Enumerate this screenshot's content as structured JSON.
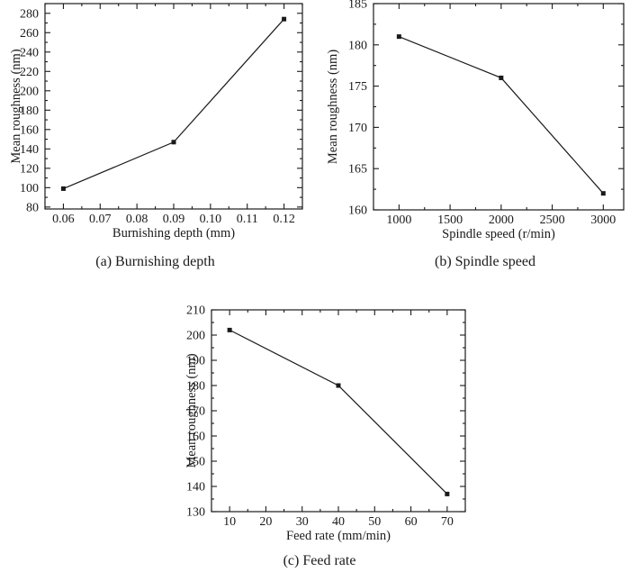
{
  "colors": {
    "ink": "#1a1a1a",
    "background": "#ffffff"
  },
  "chart_data": [
    {
      "id": "a",
      "type": "line",
      "caption": "(a) Burnishing depth",
      "xlabel": "Burnishing depth (mm)",
      "ylabel": "Mean roughness (nm)",
      "x": [
        0.06,
        0.09,
        0.12
      ],
      "y": [
        99,
        147,
        274
      ],
      "xlim": [
        0.055,
        0.125
      ],
      "ylim": [
        78,
        290
      ],
      "xticks": [
        0.06,
        0.07,
        0.08,
        0.09,
        0.1,
        0.11,
        0.12
      ],
      "xtick_labels": [
        "0.06",
        "0.07",
        "0.08",
        "0.09",
        "0.10",
        "0.11",
        "0.12"
      ],
      "yticks": [
        80,
        100,
        120,
        140,
        160,
        180,
        200,
        220,
        240,
        260,
        280
      ],
      "ytick_labels": [
        "80",
        "100",
        "120",
        "140",
        "160",
        "180",
        "200",
        "220",
        "240",
        "260",
        "280"
      ],
      "x_minor_step": 0.005,
      "y_minor_step": 10,
      "marker": "filled-square",
      "line_color": "#1a1a1a",
      "grid": false,
      "legend": "none"
    },
    {
      "id": "b",
      "type": "line",
      "caption": "(b) Spindle speed",
      "xlabel": "Spindle speed (r/min)",
      "ylabel": "Mean roughness (nm)",
      "x": [
        1000,
        2000,
        3000
      ],
      "y": [
        181,
        176,
        162
      ],
      "xlim": [
        750,
        3200
      ],
      "ylim": [
        160,
        185
      ],
      "xticks": [
        1000,
        1500,
        2000,
        2500,
        3000
      ],
      "xtick_labels": [
        "1000",
        "1500",
        "2000",
        "2500",
        "3000"
      ],
      "yticks": [
        160,
        165,
        170,
        175,
        180,
        185
      ],
      "ytick_labels": [
        "160",
        "165",
        "170",
        "175",
        "180",
        "185"
      ],
      "x_minor_step": 250,
      "y_minor_step": 2.5,
      "marker": "filled-square",
      "line_color": "#1a1a1a",
      "grid": false,
      "legend": "none"
    },
    {
      "id": "c",
      "type": "line",
      "caption": "(c) Feed rate",
      "xlabel": "Feed rate (mm/min)",
      "ylabel": "Mean roughness (nm)",
      "x": [
        10,
        40,
        70
      ],
      "y": [
        202,
        180,
        137
      ],
      "xlim": [
        5,
        75
      ],
      "ylim": [
        130,
        210
      ],
      "xticks": [
        10,
        20,
        30,
        40,
        50,
        60,
        70
      ],
      "xtick_labels": [
        "10",
        "20",
        "30",
        "40",
        "50",
        "60",
        "70"
      ],
      "yticks": [
        130,
        140,
        150,
        160,
        170,
        180,
        190,
        200,
        210
      ],
      "ytick_labels": [
        "130",
        "140",
        "150",
        "160",
        "170",
        "180",
        "190",
        "200",
        "210"
      ],
      "x_minor_step": 5,
      "y_minor_step": 5,
      "marker": "filled-square",
      "line_color": "#1a1a1a",
      "grid": false,
      "legend": "none"
    }
  ]
}
